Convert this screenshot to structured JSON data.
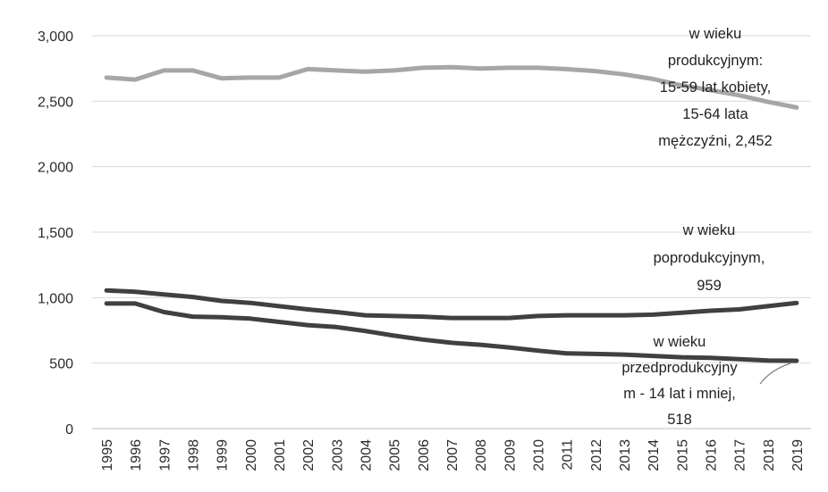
{
  "chart_data": {
    "type": "line",
    "title": "",
    "xlabel": "",
    "ylabel": "",
    "ylim": [
      0,
      3000
    ],
    "yticks": [
      "0",
      "500",
      "1,000",
      "1,500",
      "2,000",
      "2,500",
      "3,000"
    ],
    "grid": true,
    "legend": "none",
    "x": [
      "1995",
      "1996",
      "1997",
      "1998",
      "1999",
      "2000",
      "2001",
      "2002",
      "2003",
      "2004",
      "2005",
      "2006",
      "2007",
      "2008",
      "2009",
      "2010",
      "2011",
      "2012",
      "2013",
      "2014",
      "2015",
      "2016",
      "2017",
      "2018",
      "2019"
    ],
    "series": [
      {
        "id": "productive",
        "color": "#a6a6a6",
        "values": [
          2680,
          2665,
          2735,
          2735,
          2675,
          2680,
          2680,
          2745,
          2735,
          2725,
          2735,
          2755,
          2760,
          2750,
          2755,
          2755,
          2745,
          2730,
          2705,
          2670,
          2620,
          2585,
          2545,
          2495,
          2452
        ],
        "label_lines": [
          "w wieku",
          "produkcyjnym:",
          "15-59 lat kobiety,",
          "15-64 lata",
          "mężczyźni, 2,452"
        ]
      },
      {
        "id": "post_productive",
        "color": "#404040",
        "values": [
          1055,
          1045,
          1025,
          1005,
          975,
          960,
          935,
          910,
          890,
          865,
          860,
          855,
          845,
          845,
          845,
          860,
          865,
          865,
          865,
          870,
          885,
          900,
          910,
          935,
          959
        ],
        "label_lines": [
          "w wieku",
          "poprodukcyjnym,",
          "959"
        ]
      },
      {
        "id": "pre_productive",
        "color": "#404040",
        "values": [
          955,
          955,
          890,
          855,
          850,
          840,
          815,
          790,
          775,
          745,
          710,
          680,
          655,
          640,
          620,
          595,
          575,
          570,
          565,
          555,
          545,
          540,
          530,
          520,
          518
        ],
        "label_lines": [
          "w wieku",
          "przedprodukcyjny",
          "m - 14 lat i mniej,",
          "518"
        ]
      }
    ]
  }
}
